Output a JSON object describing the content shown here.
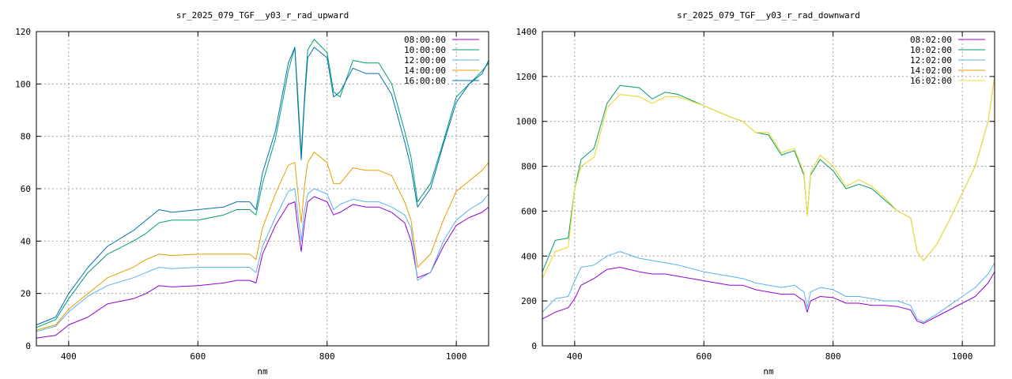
{
  "chart_data": [
    {
      "type": "line",
      "title": "sr_2025_079_TGF__y03_r_rad_upward",
      "xlabel": "nm",
      "ylabel": "",
      "xlim": [
        350,
        1050
      ],
      "ylim": [
        0,
        120
      ],
      "xticks": [
        400,
        600,
        800,
        1000
      ],
      "yticks": [
        0,
        20,
        40,
        60,
        80,
        100,
        120
      ],
      "grid": true,
      "legend": "top-right",
      "series": [
        {
          "name": "08:00:00",
          "color": "#9400d3",
          "x": [
            350,
            380,
            400,
            430,
            460,
            500,
            520,
            540,
            560,
            600,
            640,
            660,
            680,
            690,
            700,
            720,
            740,
            750,
            755,
            760,
            765,
            770,
            780,
            800,
            810,
            820,
            840,
            860,
            880,
            900,
            920,
            930,
            940,
            960,
            980,
            1000,
            1020,
            1040,
            1050
          ],
          "y": [
            3,
            4,
            8,
            11,
            16,
            18,
            20,
            23,
            22.5,
            23,
            24,
            25,
            25,
            24,
            35,
            46,
            54,
            55,
            45,
            36,
            47,
            55,
            57,
            55,
            50,
            51,
            54,
            53,
            53,
            51,
            47,
            40,
            26,
            28,
            38,
            46,
            49,
            51,
            53
          ]
        },
        {
          "name": "10:00:00",
          "color": "#009e73",
          "x": [
            350,
            380,
            400,
            430,
            460,
            500,
            520,
            540,
            560,
            600,
            640,
            660,
            680,
            690,
            700,
            720,
            740,
            750,
            755,
            760,
            765,
            770,
            780,
            800,
            810,
            820,
            840,
            860,
            880,
            900,
            920,
            930,
            940,
            960,
            980,
            1000,
            1020,
            1040,
            1050
          ],
          "y": [
            7,
            10,
            18,
            28,
            35,
            40,
            43,
            47,
            48,
            48,
            50,
            52,
            52,
            50,
            62,
            79,
            105,
            114,
            95,
            73,
            95,
            113,
            117,
            112,
            97,
            95,
            109,
            108,
            108,
            100,
            82,
            72,
            55,
            62,
            78,
            95,
            100,
            105,
            108
          ]
        },
        {
          "name": "12:00:00",
          "color": "#56b4e9",
          "x": [
            350,
            380,
            400,
            430,
            460,
            500,
            520,
            540,
            560,
            600,
            640,
            660,
            680,
            690,
            700,
            720,
            740,
            750,
            755,
            760,
            765,
            770,
            780,
            800,
            810,
            820,
            840,
            860,
            880,
            900,
            920,
            930,
            940,
            960,
            980,
            1000,
            1020,
            1040,
            1050
          ],
          "y": [
            5.5,
            7.5,
            13,
            19,
            23,
            26,
            28,
            30,
            29.5,
            30,
            30,
            30,
            30,
            28,
            38,
            49,
            59,
            60,
            50,
            40,
            52,
            58,
            60,
            58,
            52,
            54,
            56,
            55,
            55,
            53,
            50,
            45,
            25,
            28,
            40,
            48,
            52,
            55,
            58
          ]
        },
        {
          "name": "14:00:00",
          "color": "#e69f00",
          "x": [
            350,
            380,
            400,
            430,
            460,
            500,
            520,
            540,
            560,
            600,
            640,
            660,
            680,
            690,
            700,
            720,
            740,
            750,
            755,
            760,
            765,
            770,
            780,
            800,
            810,
            820,
            840,
            860,
            880,
            900,
            920,
            930,
            940,
            960,
            980,
            1000,
            1020,
            1040,
            1050
          ],
          "y": [
            6,
            8,
            14,
            20,
            26,
            30,
            33,
            35,
            34.5,
            35,
            35,
            35,
            35,
            33,
            45,
            58,
            69,
            70,
            58,
            47,
            61,
            70,
            74,
            70,
            62,
            62,
            68,
            67,
            67,
            65,
            55,
            48,
            30,
            35,
            48,
            59,
            63,
            67,
            70
          ]
        },
        {
          "name": "16:00:00",
          "color": "#0072b2",
          "x": [
            350,
            380,
            400,
            430,
            460,
            500,
            520,
            540,
            560,
            600,
            640,
            660,
            680,
            690,
            700,
            720,
            740,
            750,
            755,
            760,
            765,
            770,
            780,
            800,
            810,
            820,
            840,
            860,
            880,
            900,
            920,
            930,
            940,
            960,
            980,
            1000,
            1020,
            1040,
            1050
          ],
          "y": [
            8,
            11,
            20,
            30,
            38,
            44,
            48,
            52,
            51,
            52,
            53,
            55,
            55,
            52,
            66,
            82,
            108,
            114,
            92,
            71,
            93,
            110,
            114,
            110,
            95,
            97,
            106,
            104,
            104,
            96,
            78,
            68,
            53,
            60,
            77,
            93,
            100,
            104,
            109
          ]
        }
      ]
    },
    {
      "type": "line",
      "title": "sr_2025_079_TGF__y03_r_rad_downward",
      "xlabel": "nm",
      "ylabel": "",
      "xlim": [
        350,
        1050
      ],
      "ylim": [
        0,
        1400
      ],
      "xticks": [
        400,
        600,
        800,
        1000
      ],
      "yticks": [
        0,
        200,
        400,
        600,
        800,
        1000,
        1200,
        1400
      ],
      "grid": true,
      "legend": "top-right",
      "series": [
        {
          "name": "08:02:00",
          "color": "#9400d3",
          "x": [
            350,
            370,
            390,
            400,
            410,
            430,
            450,
            470,
            500,
            520,
            540,
            560,
            600,
            640,
            660,
            680,
            700,
            720,
            740,
            755,
            760,
            765,
            780,
            800,
            820,
            840,
            860,
            880,
            900,
            920,
            930,
            940,
            960,
            980,
            1000,
            1020,
            1040,
            1050
          ],
          "y": [
            120,
            150,
            170,
            210,
            270,
            300,
            340,
            350,
            330,
            320,
            320,
            310,
            290,
            270,
            270,
            250,
            240,
            230,
            230,
            200,
            150,
            200,
            220,
            215,
            190,
            190,
            180,
            180,
            175,
            160,
            110,
            100,
            130,
            160,
            190,
            220,
            280,
            330
          ]
        },
        {
          "name": "10:02:00",
          "color": "#009e73",
          "x": [
            350,
            370,
            390,
            400,
            410,
            430,
            450,
            470,
            500,
            520,
            540,
            560,
            600,
            640,
            660,
            680,
            700,
            720,
            740,
            755,
            760,
            765,
            780,
            800,
            820,
            840,
            860,
            880,
            900,
            920,
            930,
            940,
            960,
            980,
            1000,
            1020,
            1040,
            1050
          ],
          "y": [
            330,
            470,
            480,
            700,
            830,
            880,
            1080,
            1160,
            1150,
            1100,
            1130,
            1120,
            1070,
            1020,
            1000,
            950,
            940,
            850,
            870,
            760,
            580,
            760,
            830,
            780,
            700,
            720,
            700,
            650,
            600,
            570,
            420,
            380,
            450,
            560,
            680,
            800,
            1000,
            1200
          ]
        },
        {
          "name": "12:02:00",
          "color": "#56b4e9",
          "x": [
            350,
            370,
            390,
            400,
            410,
            430,
            450,
            470,
            500,
            520,
            540,
            560,
            600,
            640,
            660,
            680,
            700,
            720,
            740,
            755,
            760,
            765,
            780,
            800,
            820,
            840,
            860,
            880,
            900,
            920,
            930,
            940,
            960,
            980,
            1000,
            1020,
            1040,
            1050
          ],
          "y": [
            150,
            210,
            220,
            290,
            350,
            360,
            400,
            420,
            390,
            380,
            370,
            360,
            330,
            310,
            300,
            280,
            270,
            260,
            270,
            240,
            170,
            240,
            260,
            250,
            220,
            220,
            210,
            200,
            200,
            180,
            120,
            105,
            140,
            180,
            220,
            260,
            320,
            370
          ]
        },
        {
          "name": "14:02:00",
          "color": "#e69f00",
          "x": [
            350,
            370,
            390,
            400,
            410,
            430,
            450,
            470,
            500,
            520,
            540,
            560,
            600,
            640,
            660,
            680,
            700,
            720,
            740,
            755,
            760,
            765,
            780,
            800,
            820,
            840,
            860,
            880,
            900,
            920,
            930,
            940,
            960,
            980,
            1000,
            1020,
            1040,
            1050
          ],
          "y": [
            300,
            420,
            440,
            700,
            800,
            840,
            1060,
            1120,
            1110,
            1080,
            1110,
            1110,
            1070,
            1020,
            1000,
            950,
            950,
            860,
            880,
            770,
            580,
            770,
            850,
            800,
            710,
            740,
            710,
            660,
            600,
            570,
            420,
            380,
            450,
            560,
            680,
            800,
            1000,
            1200
          ]
        },
        {
          "name": "16:02:00",
          "color": "#f0e442",
          "x": [
            350,
            370,
            390,
            400,
            410,
            430,
            450,
            470,
            500,
            520,
            540,
            560,
            600,
            640,
            660,
            680,
            700,
            720,
            740,
            755,
            760,
            765,
            780,
            800,
            820,
            840,
            860,
            880,
            900,
            920,
            930,
            940,
            960,
            980,
            1000,
            1020,
            1040,
            1050
          ],
          "y": [
            300,
            420,
            440,
            700,
            800,
            840,
            1060,
            1120,
            1110,
            1080,
            1110,
            1110,
            1070,
            1020,
            1000,
            950,
            950,
            860,
            880,
            770,
            580,
            770,
            850,
            800,
            710,
            740,
            710,
            660,
            600,
            570,
            420,
            380,
            450,
            560,
            680,
            800,
            1000,
            1200
          ]
        }
      ]
    }
  ]
}
